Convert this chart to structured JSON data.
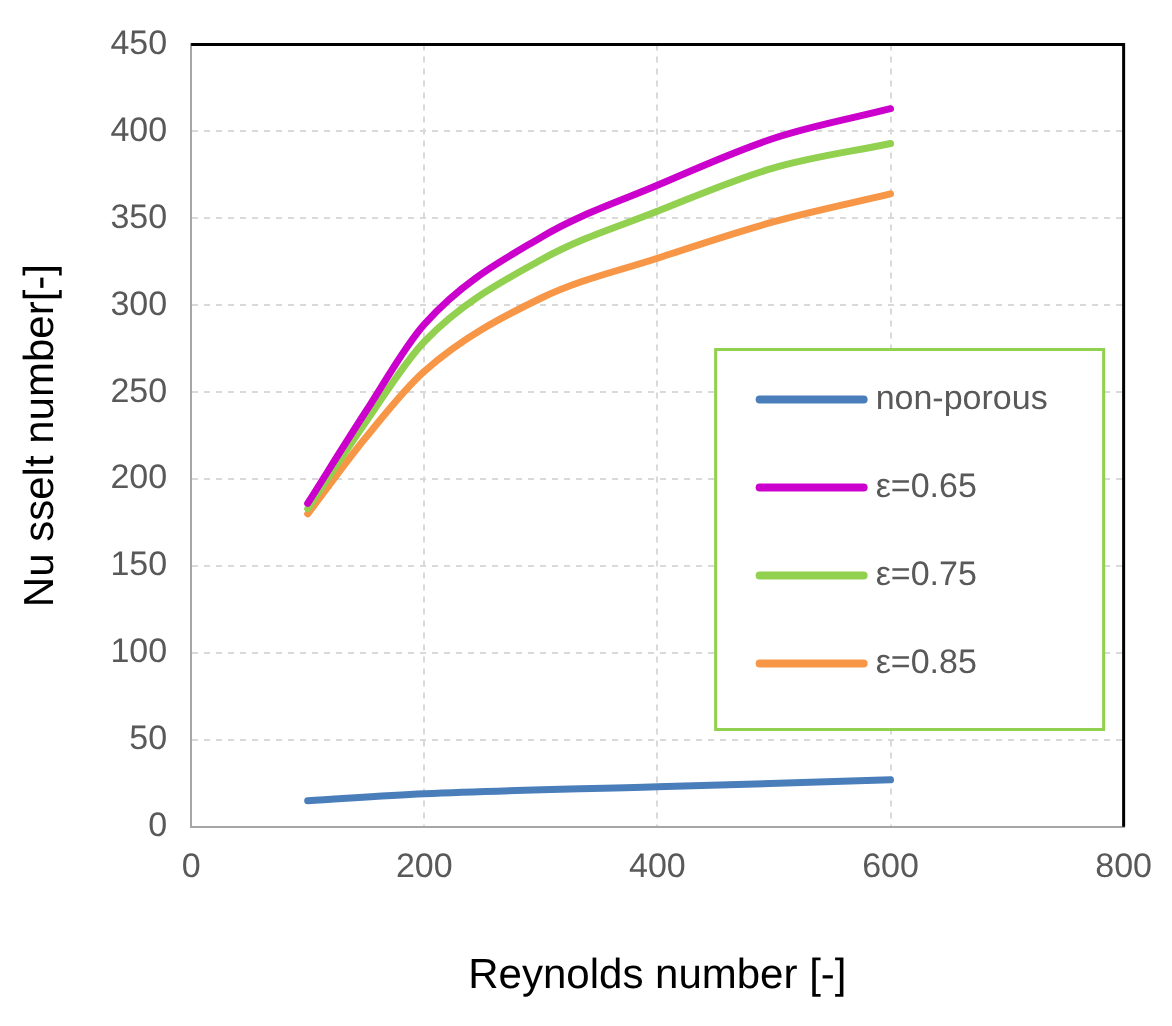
{
  "chart_data": {
    "type": "line",
    "xlabel": "Reynolds number [-]",
    "ylabel": "Nu sselt number[-]",
    "x": [
      100,
      150,
      200,
      300,
      400,
      500,
      600
    ],
    "series": [
      {
        "name": "non-porous",
        "color": "#4a7ebb",
        "x": [
          100,
          200,
          400,
          600
        ],
        "values": [
          15,
          19,
          23,
          27
        ]
      },
      {
        "name": "ε=0.65",
        "color": "#cc00cc",
        "values": [
          186,
          239,
          289,
          339,
          369,
          396,
          413
        ]
      },
      {
        "name": "ε=0.75",
        "color": "#92d050",
        "values": [
          183,
          233,
          279,
          326,
          354,
          379,
          393
        ]
      },
      {
        "name": "ε=0.85",
        "color": "#f79646",
        "values": [
          180,
          224,
          262,
          304,
          327,
          348,
          364
        ]
      }
    ],
    "xlim": [
      0,
      800
    ],
    "xticks": [
      0,
      200,
      400,
      600,
      800
    ],
    "ylim": [
      0,
      450
    ],
    "yticks": [
      0,
      50,
      100,
      150,
      200,
      250,
      300,
      350,
      400,
      450
    ],
    "grid": true,
    "legend": "right",
    "marker": "none",
    "line_style": "solid"
  }
}
